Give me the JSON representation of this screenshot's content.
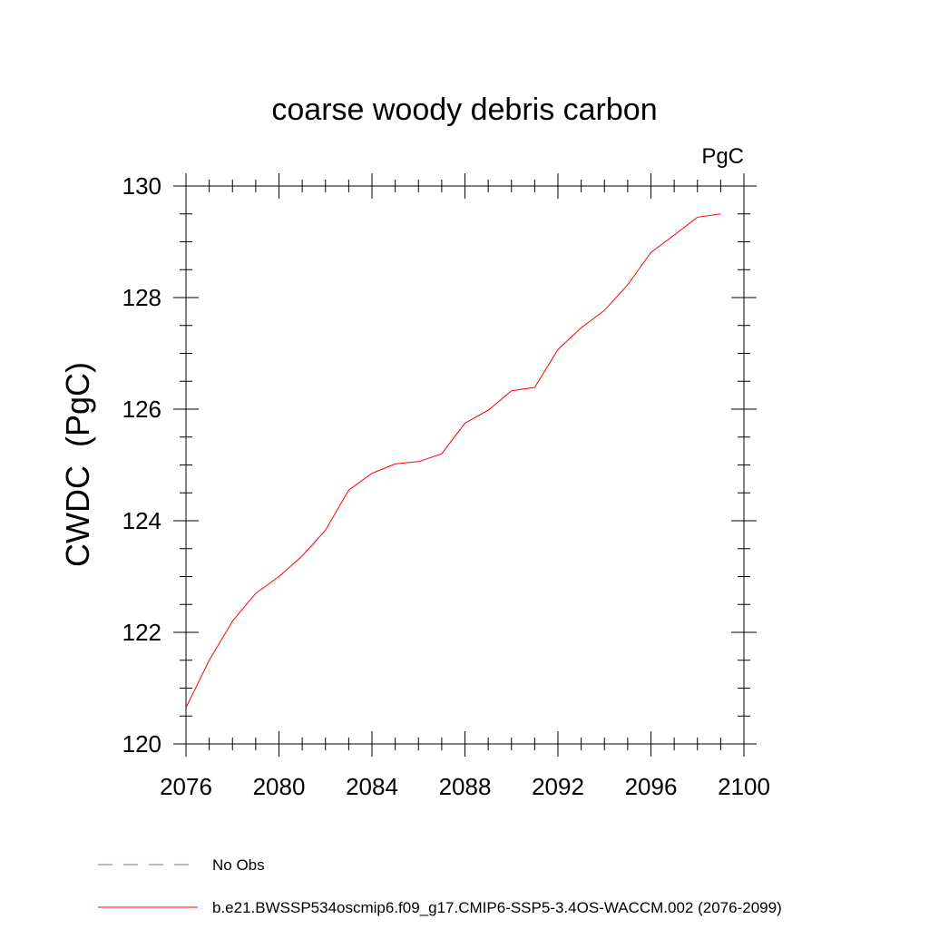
{
  "chart_data": {
    "type": "line",
    "title": "coarse woody debris carbon",
    "units": "PgC",
    "ylabel": "CWDC  (PgC)",
    "xlabel": "",
    "xlim": [
      2076,
      2100
    ],
    "ylim": [
      120,
      130
    ],
    "x_ticks": [
      2076,
      2080,
      2084,
      2088,
      2092,
      2096,
      2100
    ],
    "y_ticks": [
      120,
      122,
      124,
      126,
      128,
      130
    ],
    "grid": false,
    "legend_placement": "bottom-left",
    "series": [
      {
        "name": "b.e21.BWSSP534oscmip6.f09_g17.CMIP6-SSP5-3.4OS-WACCM.002 (2076-2099)",
        "color": "#ff0000",
        "style": "solid",
        "x": [
          2076,
          2077,
          2078,
          2079,
          2080,
          2081,
          2082,
          2083,
          2084,
          2085,
          2086,
          2087,
          2088,
          2089,
          2090,
          2091,
          2092,
          2093,
          2094,
          2095,
          2096,
          2097,
          2098,
          2099
        ],
        "values": [
          120.65,
          121.5,
          122.2,
          122.7,
          123.0,
          123.37,
          123.83,
          124.55,
          124.85,
          125.02,
          125.06,
          125.2,
          125.75,
          125.98,
          126.33,
          126.39,
          127.07,
          127.46,
          127.77,
          128.23,
          128.81,
          129.12,
          129.44,
          129.5
        ]
      }
    ],
    "legend": [
      {
        "label": "No Obs",
        "color": "#7a6fb0",
        "style": "dashed"
      },
      {
        "label": "b.e21.BWSSP534oscmip6.f09_g17.CMIP6-SSP5-3.4OS-WACCM.002 (2076-2099)",
        "color": "#ff0000",
        "style": "solid"
      }
    ]
  }
}
